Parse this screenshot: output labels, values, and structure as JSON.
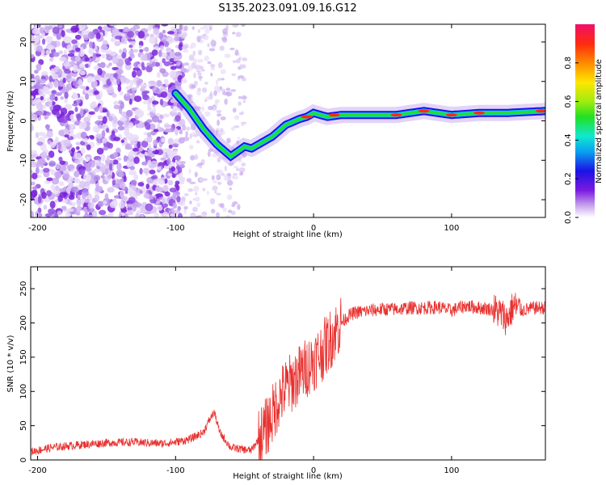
{
  "title": "S135.2023.091.09.16.G12",
  "chart_data": [
    {
      "type": "heatmap",
      "xlabel": "Height of straight line (km)",
      "ylabel": "Frequency (Hz)",
      "xlim": [
        -205,
        168
      ],
      "ylim": [
        -24.5,
        24.5
      ],
      "xticks": [
        -200,
        -100,
        0,
        100
      ],
      "yticks": [
        -20,
        -10,
        0,
        10,
        20
      ],
      "colorbar": {
        "label": "Normalized spectral amplitude",
        "ticks": [
          "0.0",
          "0.2",
          "0.4",
          "0.6",
          "0.8"
        ],
        "range": [
          0,
          1
        ]
      },
      "ridge": {
        "x": [
          -100,
          -90,
          -80,
          -70,
          -60,
          -50,
          -45,
          -40,
          -30,
          -20,
          -10,
          -5,
          0,
          10,
          20,
          40,
          60,
          80,
          100,
          120,
          140,
          168
        ],
        "y": [
          7,
          3,
          -2,
          -6,
          -9,
          -6.5,
          -7,
          -6,
          -4,
          -1,
          0.5,
          1,
          2,
          1,
          1.5,
          1.5,
          1.5,
          2.5,
          1.5,
          2,
          2,
          2.5
        ]
      }
    },
    {
      "type": "line",
      "xlabel": "Height of straight line (km)",
      "ylabel": "SNR (10 * v/v)",
      "xlim": [
        -205,
        168
      ],
      "ylim": [
        0,
        282
      ],
      "xticks": [
        -200,
        -100,
        0,
        100
      ],
      "yticks": [
        0,
        50,
        100,
        150,
        200,
        250
      ],
      "color": "#e8312f",
      "series": [
        {
          "x": [
            -205,
            -190,
            -170,
            -150,
            -130,
            -110,
            -100,
            -90,
            -80,
            -75,
            -72,
            -68,
            -60,
            -50,
            -45,
            -40,
            -35,
            -30,
            -25,
            -20,
            -15,
            -10,
            -5,
            0,
            5,
            10,
            15,
            20,
            25,
            30,
            40,
            50,
            60,
            70,
            80,
            90,
            100,
            110,
            120,
            130,
            135,
            140,
            145,
            150,
            160,
            168
          ],
          "values": [
            12,
            18,
            22,
            25,
            26,
            24,
            26,
            30,
            40,
            60,
            70,
            40,
            18,
            15,
            14,
            30,
            45,
            65,
            90,
            105,
            115,
            125,
            135,
            145,
            155,
            170,
            185,
            200,
            210,
            215,
            218,
            220,
            220,
            222,
            222,
            223,
            218,
            225,
            222,
            220,
            215,
            205,
            225,
            218,
            222,
            222
          ]
        }
      ]
    }
  ]
}
